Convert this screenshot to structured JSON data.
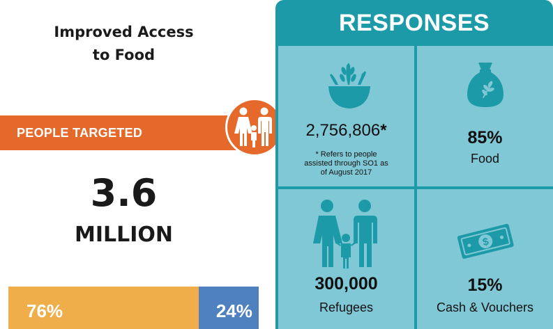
{
  "left": {
    "title_line1": "Improved Access",
    "title_line2": "to Food",
    "targeted_label": "PEOPLE TARGETED",
    "people_number": "3.6",
    "people_unit": "MILLION",
    "split_a_label": "76%",
    "split_b_label": "24%",
    "split_a_value": 76,
    "split_b_value": 24,
    "colors": {
      "orange": "#e5692a",
      "gold": "#efae4a",
      "blue": "#4f81c0"
    },
    "icon": "family-icon"
  },
  "responses": {
    "header": "RESPONSES",
    "colors": {
      "panel": "#1d9aa7",
      "cell": "#81c8d6",
      "icon": "#1d9aa7"
    },
    "assisted": {
      "value": "2,756,806",
      "marker": "*",
      "note_line1": "* Refers to people",
      "note_line2": "assisted through SO1 as",
      "note_line3": "of August 2017",
      "icon": "wheat-bowl-icon"
    },
    "food": {
      "value": "85%",
      "label": "Food",
      "icon": "grain-sack-icon"
    },
    "refugees": {
      "value": "300,000",
      "label": "Refugees",
      "icon": "family-icon"
    },
    "cash": {
      "value": "15%",
      "label": "Cash & Vouchers",
      "icon": "banknote-icon"
    }
  }
}
